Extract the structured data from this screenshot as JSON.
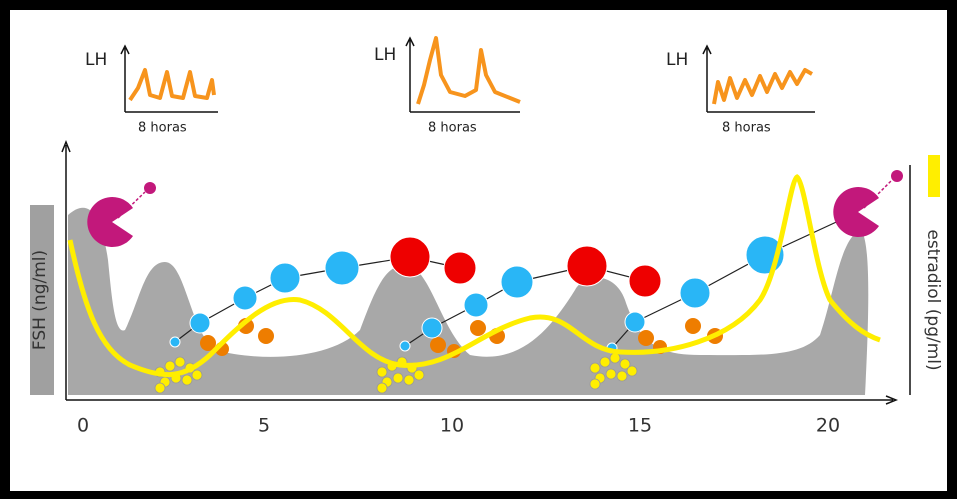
{
  "insets": [
    {
      "label": "LH",
      "caption": "8 horas"
    },
    {
      "label": "LH",
      "caption": "8 horas"
    },
    {
      "label": "LH",
      "caption": "8 horas"
    }
  ],
  "axes": {
    "left_label": "FSH (ng/ml)",
    "right_label": "estradiol (pg/ml)",
    "x_ticks": [
      0,
      5,
      10,
      15,
      20
    ]
  }
}
